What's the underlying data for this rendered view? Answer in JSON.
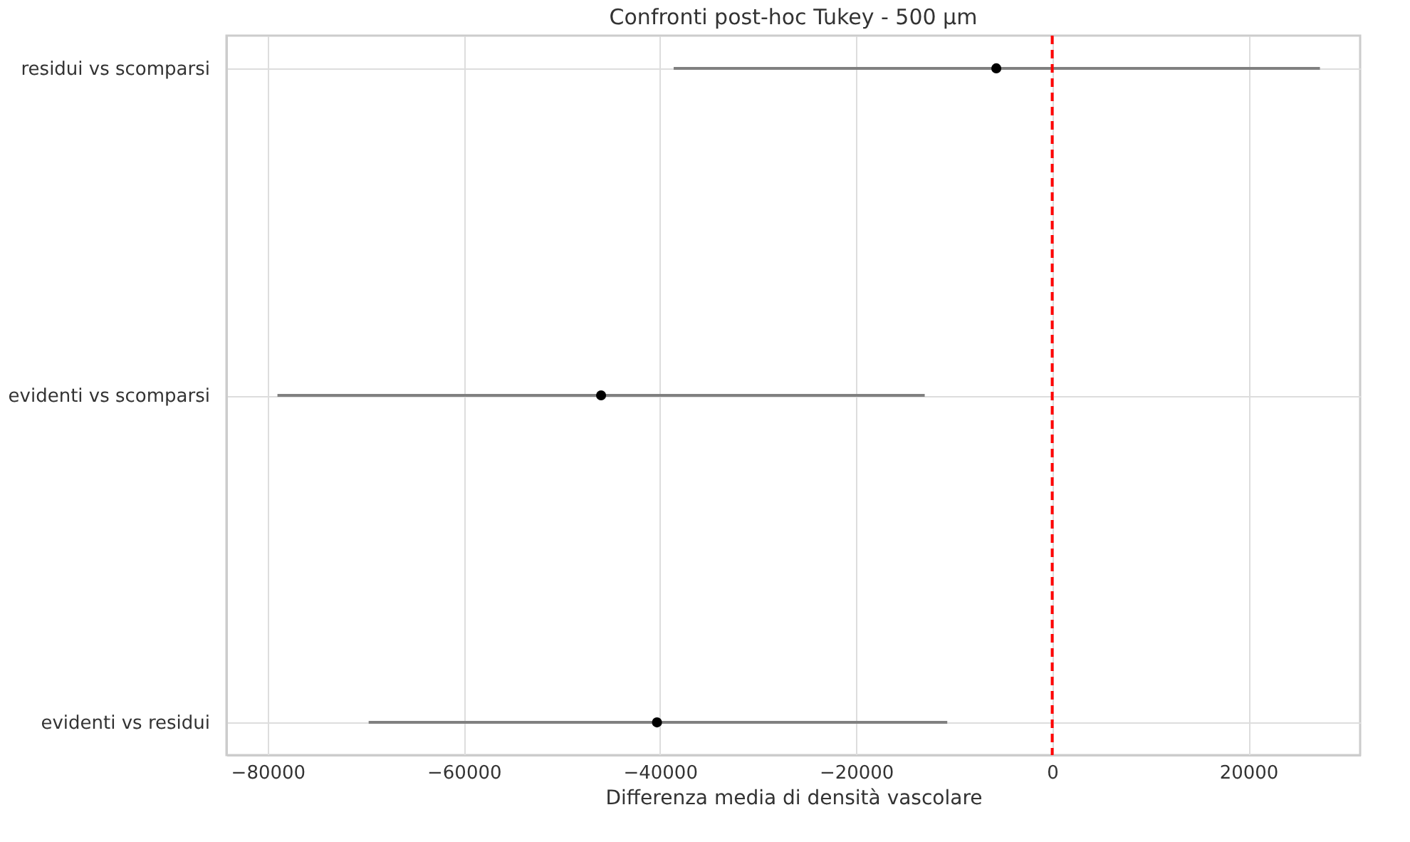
{
  "chart_data": {
    "type": "scatter",
    "orientation": "horizontal",
    "title": "Confronti post-hoc Tukey - 500 µm",
    "xlabel": "Differenza media di densità vascolare",
    "categories": [
      "residui vs scomparsi",
      "evidenti vs scomparsi",
      "evidenti vs residui"
    ],
    "series": [
      {
        "color": "#000000",
        "values": [
          -5700,
          -46000,
          -40300
        ],
        "errors": [
          [
            -38600,
            27300
          ],
          [
            -79000,
            -13000
          ],
          [
            -69700,
            -10700
          ]
        ]
      }
    ],
    "xlim": [
      -84200,
      31400
    ],
    "xticks": [
      -80000,
      -60000,
      -40000,
      -20000,
      0,
      20000
    ],
    "ref_lines": [
      {
        "axis": "x",
        "value": 0,
        "color": "#ff0000",
        "line_style": "dashed"
      }
    ],
    "grid": true,
    "marker": "circle"
  }
}
